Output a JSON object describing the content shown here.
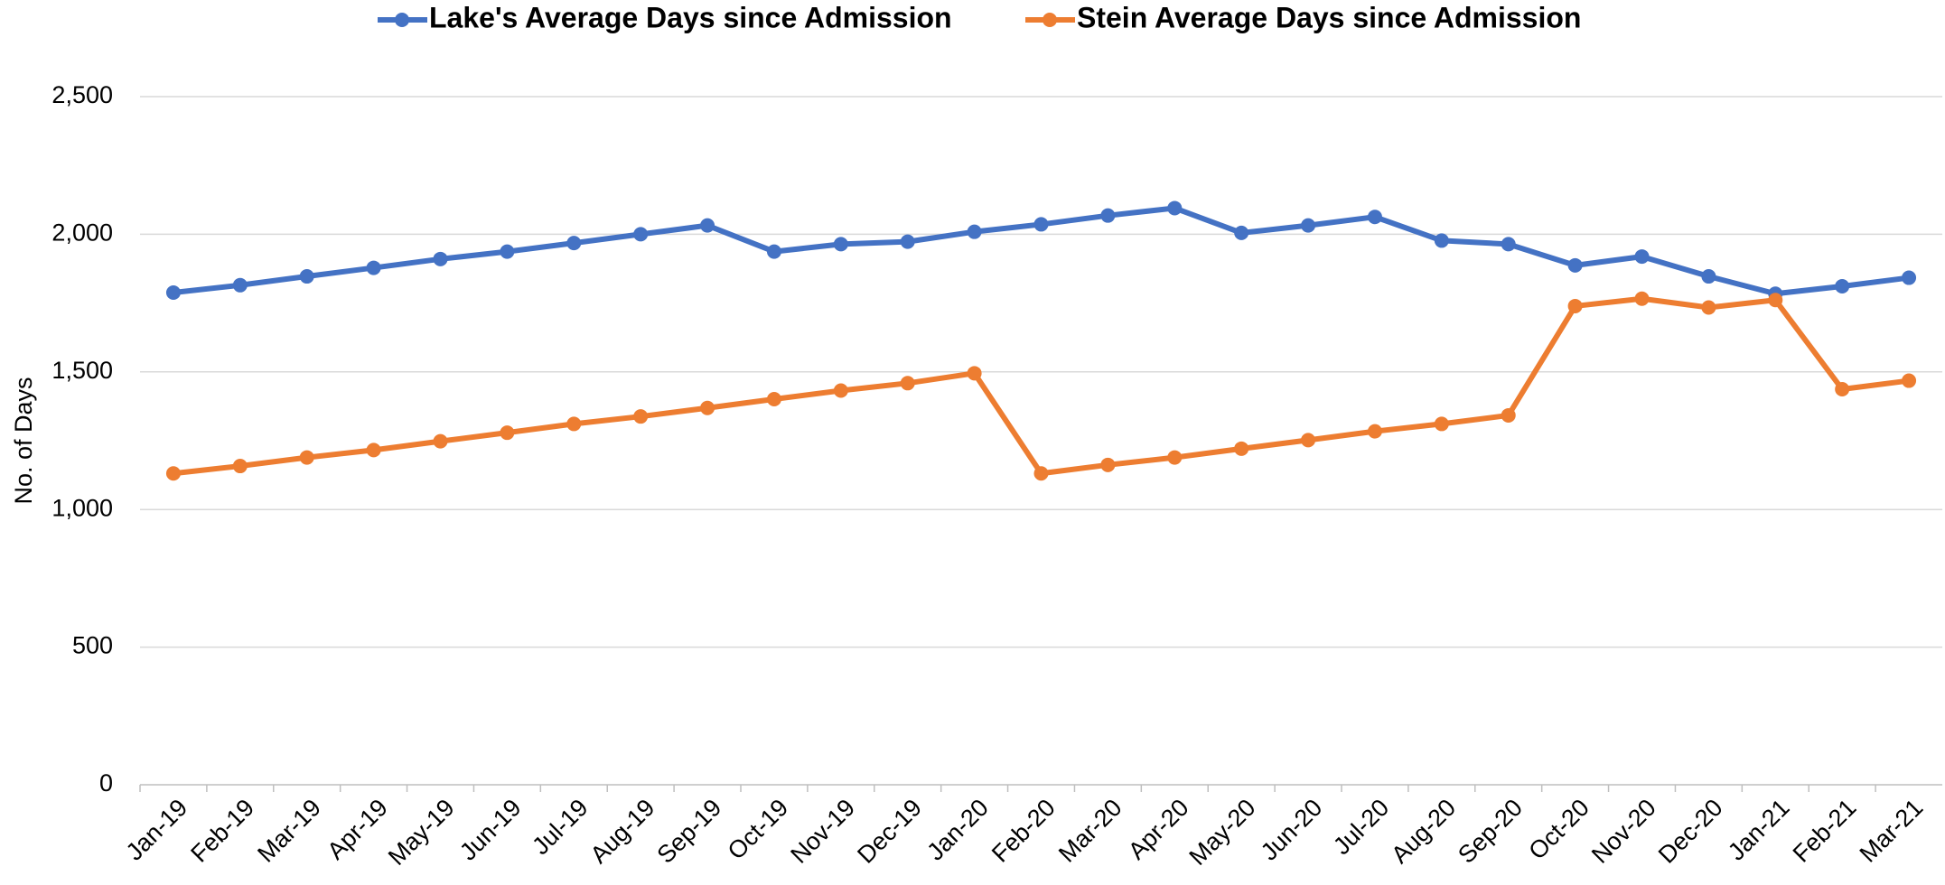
{
  "chart_data": {
    "type": "line",
    "y_label": "No. of Days",
    "categories": [
      "Jan-19",
      "Feb-19",
      "Mar-19",
      "Apr-19",
      "May-19",
      "Jun-19",
      "Jul-19",
      "Aug-19",
      "Sep-19",
      "Oct-19",
      "Nov-19",
      "Dec-19",
      "Jan-20",
      "Feb-20",
      "Mar-20",
      "Apr-20",
      "May-20",
      "Jun-20",
      "Jul-20",
      "Aug-20",
      "Sep-20",
      "Oct-20",
      "Nov-20",
      "Dec-20",
      "Jan-21",
      "Feb-21",
      "Mar-21"
    ],
    "series": [
      {
        "name": "Lake's Average Days since Admission",
        "color": "#4472c4",
        "values": [
          1788,
          1815,
          1847,
          1878,
          1910,
          1937,
          1968,
          2000,
          2032,
          1937,
          1964,
          1973,
          2009,
          2036,
          2068,
          2095,
          2005,
          2032,
          2063,
          1977,
          1964,
          1887,
          1919,
          1847,
          1784,
          1811,
          1842
        ]
      },
      {
        "name": "Stein Average Days since Admission",
        "color": "#ed7d31",
        "values": [
          1131,
          1158,
          1189,
          1216,
          1248,
          1279,
          1311,
          1338,
          1369,
          1401,
          1432,
          1459,
          1495,
          1131,
          1162,
          1189,
          1221,
          1252,
          1284,
          1311,
          1342,
          1739,
          1766,
          1734,
          1761,
          1437,
          1468
        ]
      }
    ],
    "ylim": [
      0,
      2500
    ],
    "yticks": [
      0,
      500,
      {
        "value": 1000,
        "label": "1,000"
      },
      {
        "value": 1500,
        "label": "1,500"
      },
      {
        "value": 2000,
        "label": "2,000"
      },
      {
        "value": 2500,
        "label": "2,500"
      }
    ],
    "grid": true,
    "legend": "top"
  }
}
